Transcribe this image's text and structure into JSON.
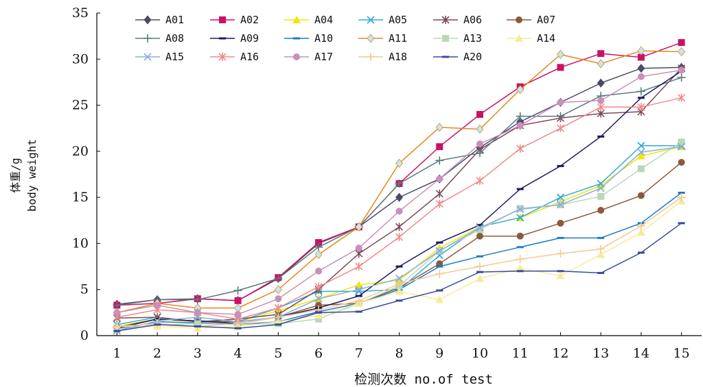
{
  "chart_data": {
    "type": "line",
    "xlabel": "检测次数 no.of test",
    "ylabel_cn": "体重/g",
    "ylabel_en": "body weight",
    "x": [
      1,
      2,
      3,
      4,
      5,
      6,
      7,
      8,
      9,
      10,
      11,
      12,
      13,
      14,
      15
    ],
    "xlim": [
      0.5,
      15.5
    ],
    "ylim": [
      0,
      35
    ],
    "yticks": [
      0,
      5,
      10,
      15,
      20,
      25,
      30,
      35
    ],
    "legend_position": "top-left, 6 columns",
    "series": [
      {
        "name": "A01",
        "color": "#4a4a6a",
        "marker": "diamond",
        "values": [
          3.4,
          3.9,
          4.0,
          3.8,
          6.2,
          10.0,
          11.8,
          15.0,
          17.0,
          20.4,
          23.2,
          25.3,
          27.4,
          29.0,
          29.1
        ]
      },
      {
        "name": "A02",
        "color": "#cc1066",
        "marker": "square",
        "values": [
          3.3,
          3.5,
          4.0,
          3.8,
          6.3,
          10.1,
          11.8,
          16.5,
          20.5,
          24.0,
          27.0,
          29.1,
          30.6,
          30.2,
          31.8
        ]
      },
      {
        "name": "A04",
        "color": "#f2e600",
        "marker": "triangle",
        "values": [
          1.0,
          1.8,
          1.5,
          1.5,
          2.7,
          4.0,
          5.5,
          6.0,
          9.5,
          11.8,
          12.8,
          14.5,
          16.3,
          19.5,
          20.5
        ]
      },
      {
        "name": "A05",
        "color": "#33aadd",
        "marker": "x",
        "values": [
          1.2,
          2.0,
          1.5,
          1.5,
          3.0,
          4.8,
          4.8,
          5.0,
          8.7,
          11.8,
          12.8,
          15.0,
          16.5,
          20.6,
          20.6
        ]
      },
      {
        "name": "A06",
        "color": "#7a4a5a",
        "marker": "star",
        "values": [
          1.9,
          2.0,
          1.5,
          1.8,
          2.3,
          5.0,
          8.9,
          11.8,
          15.4,
          20.2,
          22.8,
          23.6,
          24.1,
          24.3,
          29.0
        ]
      },
      {
        "name": "A07",
        "color": "#8b5a3c",
        "marker": "circle",
        "values": [
          0.9,
          1.8,
          1.6,
          1.5,
          2.0,
          3.3,
          3.5,
          5.2,
          7.8,
          10.8,
          10.8,
          12.2,
          13.6,
          15.2,
          18.8
        ]
      },
      {
        "name": "A08",
        "color": "#5a7a7a",
        "marker": "plus",
        "values": [
          3.3,
          3.9,
          3.9,
          4.9,
          6.2,
          9.6,
          11.8,
          16.5,
          19.0,
          19.8,
          23.8,
          23.8,
          26.0,
          26.5,
          28.0
        ]
      },
      {
        "name": "A09",
        "color": "#1a1a60",
        "marker": "dash",
        "values": [
          0.8,
          1.8,
          1.6,
          1.3,
          2.0,
          3.0,
          4.3,
          7.5,
          10.1,
          12.0,
          15.9,
          18.4,
          21.6,
          25.8,
          28.7
        ]
      },
      {
        "name": "A10",
        "color": "#1a7acc",
        "marker": "dash",
        "values": [
          0.7,
          1.5,
          1.4,
          1.2,
          1.5,
          2.6,
          3.5,
          5.0,
          7.5,
          8.6,
          9.6,
          10.6,
          10.6,
          12.2,
          15.5
        ]
      },
      {
        "name": "A11",
        "color": "#e08a1a",
        "marker": "diamond",
        "markerColor": "#bfe8f5",
        "values": [
          2.5,
          3.5,
          3.0,
          3.0,
          5.0,
          8.8,
          11.8,
          18.7,
          22.6,
          22.4,
          26.7,
          30.5,
          29.5,
          30.9,
          30.8
        ]
      },
      {
        "name": "A13",
        "color": "#b8d8b8",
        "marker": "square",
        "values": [
          0.7,
          1.2,
          1.3,
          1.2,
          1.3,
          1.8,
          3.5,
          5.4,
          9.2,
          11.5,
          13.8,
          14.2,
          15.1,
          18.1,
          21.0
        ]
      },
      {
        "name": "A14",
        "color": "#f5ec9a",
        "marker": "triangle",
        "values": [
          1.0,
          1.0,
          0.8,
          1.0,
          1.5,
          2.2,
          3.5,
          4.8,
          3.9,
          6.2,
          7.3,
          6.5,
          8.8,
          11.2,
          14.6
        ]
      },
      {
        "name": "A15",
        "color": "#8aaedd",
        "marker": "x",
        "values": [
          0.5,
          1.6,
          2.0,
          1.5,
          2.0,
          4.0,
          5.0,
          6.2,
          9.2,
          11.7,
          13.7,
          14.2,
          16.0,
          19.9,
          20.5
        ]
      },
      {
        "name": "A16",
        "color": "#f08a8a",
        "marker": "star",
        "values": [
          2.0,
          2.8,
          2.5,
          1.8,
          3.0,
          5.3,
          7.5,
          10.7,
          14.3,
          16.8,
          20.3,
          22.5,
          24.8,
          24.8,
          25.8
        ]
      },
      {
        "name": "A17",
        "color": "#c890b8",
        "marker": "circle",
        "values": [
          2.5,
          3.3,
          2.5,
          2.3,
          4.0,
          7.0,
          9.5,
          13.5,
          17.0,
          20.8,
          22.8,
          25.3,
          25.5,
          28.1,
          28.8
        ]
      },
      {
        "name": "A18",
        "color": "#f5c890",
        "marker": "plus",
        "values": [
          1.0,
          1.3,
          1.0,
          1.3,
          2.0,
          2.8,
          3.8,
          5.6,
          6.7,
          7.5,
          8.3,
          8.9,
          9.4,
          11.9,
          15.0
        ]
      },
      {
        "name": "A20",
        "color": "#3a4a9a",
        "marker": "dash",
        "values": [
          0.5,
          1.2,
          1.0,
          0.8,
          1.2,
          2.5,
          2.6,
          3.8,
          4.9,
          6.9,
          7.0,
          7.0,
          6.8,
          9.0,
          12.2
        ]
      }
    ]
  }
}
